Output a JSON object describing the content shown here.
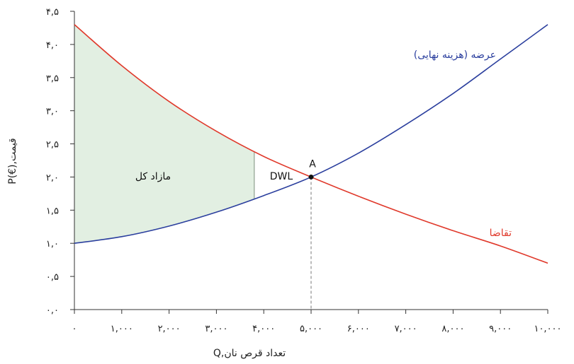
{
  "chart_data": {
    "type": "line",
    "x_axis": {
      "label": "Q,تعداد قرص نان",
      "range": [
        0,
        10000
      ],
      "ticks": [
        0,
        1000,
        2000,
        3000,
        4000,
        5000,
        6000,
        7000,
        8000,
        9000,
        10000
      ],
      "tick_labels": [
        "۰",
        "۱,۰۰۰",
        "۲,۰۰۰",
        "۳,۰۰۰",
        "۴,۰۰۰",
        "۵,۰۰۰",
        "۶,۰۰۰",
        "۷,۰۰۰",
        "۸,۰۰۰",
        "۹,۰۰۰",
        "۱۰,۰۰۰"
      ]
    },
    "y_axis": {
      "label": "P(€),قیمت",
      "range": [
        0,
        4.5
      ],
      "ticks": [
        0,
        0.5,
        1,
        1.5,
        2,
        2.5,
        3,
        3.5,
        4,
        4.5
      ],
      "tick_labels": [
        "۰,۰",
        "۰,۵",
        "۱,۰",
        "۱,۵",
        "۲,۰",
        "۲,۵",
        "۳,۰",
        "۳,۵",
        "۴,۰",
        "۴,۵"
      ]
    },
    "grid": false,
    "series": [
      {
        "name": "عرضه (هزینه نهایی)",
        "color": "#2b3f9e",
        "x": [
          0,
          1000,
          2000,
          3000,
          4000,
          5000,
          6000,
          7000,
          8000,
          9000,
          10000
        ],
        "y": [
          1.0,
          1.1,
          1.26,
          1.47,
          1.72,
          2.0,
          2.36,
          2.79,
          3.26,
          3.78,
          4.3
        ]
      },
      {
        "name": "تقاضا",
        "color": "#e0392b",
        "x": [
          0,
          1000,
          2000,
          3000,
          4000,
          5000,
          6000,
          7000,
          8000,
          9000,
          10000
        ],
        "y": [
          4.3,
          3.68,
          3.14,
          2.69,
          2.31,
          2.0,
          1.71,
          1.44,
          1.19,
          0.96,
          0.7
        ]
      }
    ],
    "shaded_areas": [
      {
        "label": "مازاد کل",
        "x_from": 0,
        "x_to": 3800,
        "color": "#e2efe2"
      },
      {
        "label": "DWL",
        "x_from": 3800,
        "x_to": 5000
      }
    ],
    "points": [
      {
        "label": "A",
        "x": 5000,
        "y": 2.0
      }
    ]
  }
}
